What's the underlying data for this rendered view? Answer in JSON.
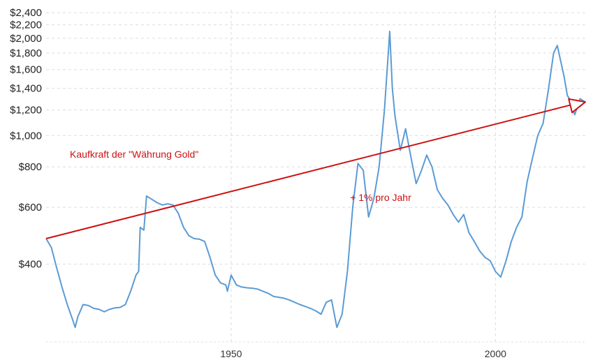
{
  "chart_data": {
    "type": "line",
    "title": "",
    "xlabel": "",
    "ylabel": "",
    "scale": "log",
    "grid": true,
    "xlim": [
      1915,
      2017
    ],
    "ylim": [
      230,
      2450
    ],
    "x_ticks": [
      {
        "value": 1950,
        "label": "1950"
      },
      {
        "value": 2000,
        "label": "2000"
      }
    ],
    "y_ticks": [
      {
        "value": 400,
        "label": "$400"
      },
      {
        "value": 600,
        "label": "$600"
      },
      {
        "value": 800,
        "label": "$800"
      },
      {
        "value": 1000,
        "label": "$1,000"
      },
      {
        "value": 1200,
        "label": "$1,200"
      },
      {
        "value": 1400,
        "label": "$1,400"
      },
      {
        "value": 1600,
        "label": "$1,600"
      },
      {
        "value": 1800,
        "label": "$1,800"
      },
      {
        "value": 2000,
        "label": "$2,000"
      },
      {
        "value": 2200,
        "label": "$2,200"
      },
      {
        "value": 2400,
        "label": "$2,400"
      }
    ],
    "series": [
      {
        "color": "#5b9bd5",
        "points": [
          [
            1915.0,
            480
          ],
          [
            1916.0,
            450
          ],
          [
            1917.0,
            390
          ],
          [
            1918.0,
            340
          ],
          [
            1919.0,
            300
          ],
          [
            1920.0,
            270
          ],
          [
            1920.5,
            255
          ],
          [
            1921.0,
            275
          ],
          [
            1922.0,
            300
          ],
          [
            1923.0,
            298
          ],
          [
            1924.0,
            292
          ],
          [
            1925.0,
            290
          ],
          [
            1926.0,
            285
          ],
          [
            1927.0,
            290
          ],
          [
            1928.0,
            293
          ],
          [
            1929.0,
            294
          ],
          [
            1930.0,
            300
          ],
          [
            1931.0,
            330
          ],
          [
            1932.0,
            370
          ],
          [
            1932.5,
            380
          ],
          [
            1932.8,
            520
          ],
          [
            1933.5,
            510
          ],
          [
            1934.0,
            650
          ],
          [
            1935.0,
            635
          ],
          [
            1936.0,
            620
          ],
          [
            1937.0,
            610
          ],
          [
            1938.0,
            615
          ],
          [
            1939.0,
            610
          ],
          [
            1940.0,
            575
          ],
          [
            1941.0,
            520
          ],
          [
            1942.0,
            490
          ],
          [
            1943.0,
            480
          ],
          [
            1944.0,
            478
          ],
          [
            1945.0,
            470
          ],
          [
            1946.0,
            420
          ],
          [
            1947.0,
            370
          ],
          [
            1948.0,
            350
          ],
          [
            1949.0,
            345
          ],
          [
            1949.3,
            330
          ],
          [
            1950.0,
            370
          ],
          [
            1951.0,
            345
          ],
          [
            1952.0,
            340
          ],
          [
            1953.0,
            338
          ],
          [
            1954.0,
            337
          ],
          [
            1955.0,
            335
          ],
          [
            1956.0,
            330
          ],
          [
            1957.0,
            325
          ],
          [
            1958.0,
            318
          ],
          [
            1959.0,
            316
          ],
          [
            1960.0,
            314
          ],
          [
            1961.0,
            310
          ],
          [
            1962.0,
            305
          ],
          [
            1963.0,
            300
          ],
          [
            1964.0,
            296
          ],
          [
            1965.0,
            292
          ],
          [
            1966.0,
            287
          ],
          [
            1967.0,
            280
          ],
          [
            1968.0,
            305
          ],
          [
            1969.0,
            310
          ],
          [
            1970.0,
            255
          ],
          [
            1971.0,
            280
          ],
          [
            1972.0,
            380
          ],
          [
            1973.0,
            600
          ],
          [
            1974.0,
            820
          ],
          [
            1975.0,
            780
          ],
          [
            1976.0,
            560
          ],
          [
            1977.0,
            640
          ],
          [
            1978.0,
            800
          ],
          [
            1979.0,
            1200
          ],
          [
            1980.0,
            2100
          ],
          [
            1980.5,
            1400
          ],
          [
            1981.0,
            1150
          ],
          [
            1982.0,
            900
          ],
          [
            1983.0,
            1050
          ],
          [
            1984.0,
            860
          ],
          [
            1985.0,
            710
          ],
          [
            1986.0,
            780
          ],
          [
            1987.0,
            870
          ],
          [
            1988.0,
            800
          ],
          [
            1989.0,
            680
          ],
          [
            1990.0,
            640
          ],
          [
            1991.0,
            610
          ],
          [
            1992.0,
            570
          ],
          [
            1993.0,
            540
          ],
          [
            1994.0,
            570
          ],
          [
            1995.0,
            500
          ],
          [
            1996.0,
            470
          ],
          [
            1997.0,
            440
          ],
          [
            1998.0,
            420
          ],
          [
            1999.0,
            410
          ],
          [
            2000.0,
            380
          ],
          [
            2001.0,
            365
          ],
          [
            2002.0,
            410
          ],
          [
            2003.0,
            470
          ],
          [
            2004.0,
            520
          ],
          [
            2005.0,
            560
          ],
          [
            2006.0,
            720
          ],
          [
            2007.0,
            850
          ],
          [
            2008.0,
            1000
          ],
          [
            2009.0,
            1090
          ],
          [
            2010.0,
            1380
          ],
          [
            2011.0,
            1800
          ],
          [
            2011.7,
            1900
          ],
          [
            2012.0,
            1800
          ],
          [
            2013.0,
            1520
          ],
          [
            2013.6,
            1330
          ],
          [
            2014.0,
            1300
          ],
          [
            2015.0,
            1160
          ],
          [
            2016.0,
            1300
          ],
          [
            2017.0,
            1270
          ]
        ]
      },
      {
        "color": "#cc1111",
        "points": [
          [
            1915.0,
            480
          ],
          [
            2017.0,
            1270
          ]
        ]
      }
    ],
    "annotations": [
      {
        "text": "Kaufkraft der \"Währung Gold\"",
        "x": 1919.5,
        "y": 855,
        "color": "#cc1111"
      },
      {
        "text": "+ 1% pro Jahr",
        "x": 1972.5,
        "y": 628,
        "color": "#cc1111"
      }
    ]
  }
}
